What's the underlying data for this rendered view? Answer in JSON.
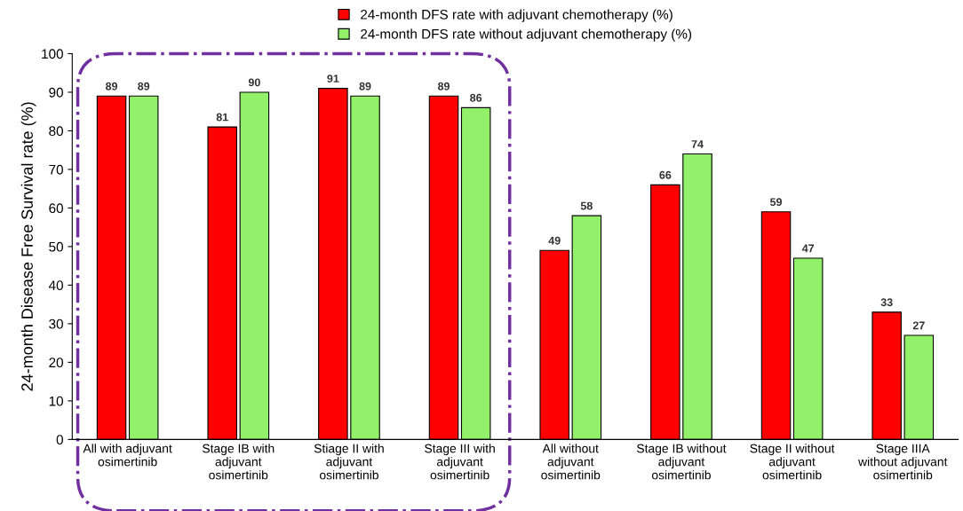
{
  "chart_data": {
    "type": "bar",
    "ylabel": "24-month Disease Free Survival rate (%)",
    "categories": [
      "All with adjuvant\nosimertinib",
      "Stage IB with\nadjuvant\nosimertinib",
      "Stiage II with\nadjuvant\nosimertinib",
      "Stage III with\nadjuvant\nosimertinib",
      "All without\nadjuvant\nosimertinib",
      "Stage IB without\nadjuvant\nosimertinib",
      "Stage II without\nadjuvant\nosimertinib",
      "Stage IIIA\nwithout adjuvant\nosimertinib"
    ],
    "series": [
      {
        "name": "24-month DFS rate with adjuvant chemotherapy (%)",
        "color": "#ff0000",
        "values": [
          89,
          81,
          91,
          89,
          49,
          66,
          59,
          33
        ]
      },
      {
        "name": "24-month DFS rate without adjuvant chemotherapy (%)",
        "color": "#92f06a",
        "values": [
          89,
          90,
          89,
          86,
          58,
          74,
          47,
          27
        ]
      }
    ],
    "ylim": [
      0,
      100
    ],
    "yticks": [
      0,
      10,
      20,
      30,
      40,
      50,
      60,
      70,
      80,
      90,
      100
    ],
    "grid": false,
    "legend": "top",
    "data_labels": true
  }
}
